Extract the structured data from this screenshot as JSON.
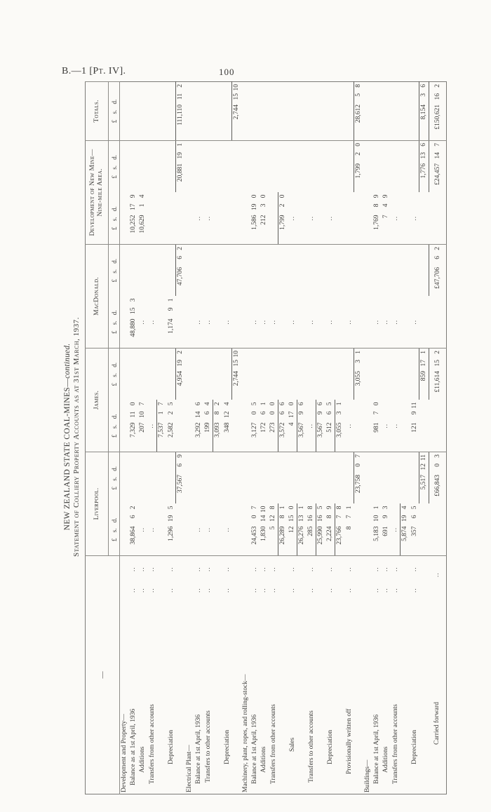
{
  "colors": {
    "paper": "#fbfaf7",
    "ink": "#3b3a38"
  },
  "page": {
    "running_head": "B.—1 [Pt. IV].",
    "page_number": "100"
  },
  "table": {
    "title_main": "NEW ZEALAND STATE COAL-MINES—",
    "title_continued": "continued.",
    "subtitle": "Statement of Colliery Property Accounts as at 31st March, 1937.",
    "label_col_header": "—",
    "unit_header": "£ s. d.",
    "columns": [
      {
        "label": "Liverpool.",
        "span": 2
      },
      {
        "label": "James.",
        "span": 2
      },
      {
        "label": "MacDonald.",
        "span": 2
      },
      {
        "label": "Development of New Mine— Nine-mile Area.",
        "span": 2
      },
      {
        "label": "Totals.",
        "span": 1
      }
    ],
    "rows": [
      {
        "t": "head",
        "label": "Development and Property—"
      },
      {
        "t": "data",
        "label": "Balance as at 1st April, 1936",
        "ind": 12,
        "dots": 2,
        "cells": [
          "38,864 6 2",
          "",
          "7,329 11 0",
          "",
          "48,880 15 3",
          "",
          "10,252 17 9",
          "",
          ""
        ]
      },
      {
        "t": "data",
        "label": "Additions",
        "ind": 30,
        "dots": 2,
        "cells": [
          "..",
          "",
          "207 10 7",
          "",
          "..",
          "",
          "10,629 1 4",
          "",
          ""
        ]
      },
      {
        "t": "data",
        "label": "Transfers from other accounts",
        "ind": 14,
        "dots": 2,
        "cells": [
          "..",
          "",
          "..",
          "",
          "..",
          "",
          "",
          "",
          ""
        ]
      },
      {
        "t": "sub",
        "cells": [
          "",
          "",
          "7,537 1 7",
          "",
          "",
          "",
          "",
          "",
          ""
        ]
      },
      {
        "t": "data",
        "label": "Depreciation",
        "ind": 42,
        "dots": 2,
        "cells": [
          "1,296 19 5",
          "",
          "2,582 2 5",
          "",
          "1,174 9 1",
          "",
          "",
          "",
          ""
        ]
      },
      {
        "t": "net",
        "cells": [
          "",
          "37,567 6 9",
          "",
          "4,954 19 2",
          "",
          "47,706 6 2",
          "",
          "20,881 19 1",
          "111,110 11 2"
        ]
      },
      {
        "t": "head",
        "label": "Electrical Plant—"
      },
      {
        "t": "data",
        "label": "Balance at 1st April, 1936",
        "ind": 14,
        "dots": 2,
        "cells": [
          "..",
          "",
          "3,292 14 6",
          "",
          "..",
          "",
          "..",
          "",
          ""
        ]
      },
      {
        "t": "data",
        "label": "Transfers to other accounts",
        "ind": 16,
        "dots": 2,
        "cells": [
          "..",
          "",
          "199 6 4",
          "",
          "..",
          "",
          "..",
          "",
          ""
        ]
      },
      {
        "t": "sub",
        "cells": [
          "",
          "",
          "3,093 8 2",
          "",
          "",
          "",
          "",
          "",
          ""
        ]
      },
      {
        "t": "data",
        "label": "Depreciation",
        "ind": 42,
        "dots": 2,
        "cells": [
          "..",
          "",
          "348 12 4",
          "",
          "..",
          "",
          "",
          "",
          ""
        ]
      },
      {
        "t": "net",
        "cells": [
          "",
          "",
          "",
          "2,744 15 10",
          "",
          "",
          "",
          "",
          "2,744 15 10"
        ]
      },
      {
        "t": "head",
        "label": "Machinery, plant, ropes, and rolling-stock—"
      },
      {
        "t": "data",
        "label": "Balance at 1st April, 1936",
        "ind": 14,
        "dots": 2,
        "cells": [
          "24,453 0 7",
          "",
          "3,127 0 5",
          "",
          "..",
          "",
          "1,586 19 0",
          "",
          ""
        ]
      },
      {
        "t": "data",
        "label": "Additions",
        "ind": 30,
        "dots": 2,
        "cells": [
          "1,830 14 10",
          "",
          "172 6 1",
          "",
          "..",
          "",
          "212 3 0",
          "",
          ""
        ]
      },
      {
        "t": "data",
        "label": "Transfers from other accounts",
        "ind": 14,
        "dots": 2,
        "cells": [
          "5 12 8",
          "",
          "273 0 0",
          "",
          "..",
          "",
          "",
          "",
          ""
        ]
      },
      {
        "t": "sub",
        "cells": [
          "26,289 8 1",
          "",
          "3,572 6 6",
          "",
          "",
          "",
          "1,799 2 0",
          "",
          ""
        ]
      },
      {
        "t": "data",
        "label": "Sales",
        "ind": 60,
        "dots": 2,
        "cells": [
          "12 15 0",
          "",
          "4 17 0",
          "",
          "..",
          "",
          "..",
          "",
          ""
        ]
      },
      {
        "t": "sub",
        "cells": [
          "26,276 13 1",
          "",
          "3,567 9 6",
          "",
          "",
          "",
          "",
          "",
          ""
        ]
      },
      {
        "t": "data",
        "label": "Transfers to other accounts",
        "ind": 16,
        "dots": 2,
        "cells": [
          "285 16 8",
          "",
          "..",
          "",
          "..",
          "",
          "..",
          "",
          ""
        ]
      },
      {
        "t": "sub",
        "cells": [
          "25,990 16 5",
          "",
          "3,567 9 6",
          "",
          "",
          "",
          "",
          "",
          ""
        ]
      },
      {
        "t": "data",
        "label": "Depreciation",
        "ind": 42,
        "dots": 2,
        "cells": [
          "2,224 8 9",
          "",
          "512 6 5",
          "",
          "..",
          "",
          "..",
          "",
          ""
        ]
      },
      {
        "t": "sub",
        "cells": [
          "23,766 7 8",
          "",
          "3,055 3 1",
          "",
          "",
          "",
          "",
          "",
          ""
        ]
      },
      {
        "t": "data",
        "label": "Provisionally written off",
        "ind": 28,
        "dots": 2,
        "cells": [
          "8 7 1",
          "",
          "..",
          "",
          "..",
          "",
          "",
          "",
          ""
        ]
      },
      {
        "t": "net",
        "cells": [
          "",
          "23,758 0 7",
          "",
          "3,055 3 1",
          "",
          "",
          "",
          "1,799 2 0",
          "28,612 5 8"
        ]
      },
      {
        "t": "head",
        "label": "Buildings—"
      },
      {
        "t": "data",
        "label": "Balance at 1st April, 1936",
        "ind": 14,
        "dots": 2,
        "cells": [
          "5,183 10 1",
          "",
          "981 7 0",
          "",
          "..",
          "",
          "1,769 8 9",
          "",
          ""
        ]
      },
      {
        "t": "data",
        "label": "Additions",
        "ind": 30,
        "dots": 2,
        "cells": [
          "691 9 3",
          "",
          "..",
          "",
          "..",
          "",
          "7 4 9",
          "",
          ""
        ]
      },
      {
        "t": "data",
        "label": "Transfers from other accounts",
        "ind": 14,
        "dots": 2,
        "cells": [
          "..",
          "",
          "..",
          "",
          "..",
          "",
          "..",
          "",
          ""
        ]
      },
      {
        "t": "sub",
        "cells": [
          "5,874 19 4",
          "",
          "",
          "",
          "",
          "",
          "",
          "",
          ""
        ]
      },
      {
        "t": "data",
        "label": "Depreciation",
        "ind": 42,
        "dots": 2,
        "cells": [
          "357 6 5",
          "",
          "121 9 11",
          "",
          "..",
          "",
          "..",
          "",
          ""
        ]
      },
      {
        "t": "net",
        "cells": [
          "",
          "5,517 12 11",
          "",
          "859 17 1",
          "",
          "",
          "",
          "1,776 13 6",
          "8,154 3 6"
        ]
      },
      {
        "t": "carried",
        "label": "Carried forward",
        "ind": 70,
        "dots": 1,
        "cells": [
          "",
          "£66,843 0 3",
          "",
          "£11,614 15 2",
          "",
          "£47,706 6 2",
          "",
          "£24,457 14 7",
          "£150,621 16 2"
        ]
      }
    ]
  }
}
